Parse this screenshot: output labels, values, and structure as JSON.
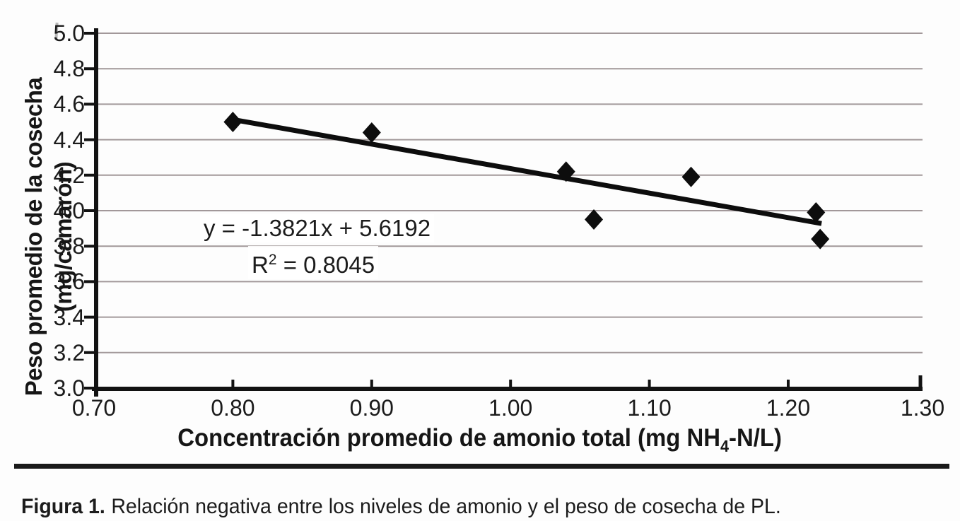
{
  "figure": {
    "caption_label": "Figura 1.",
    "caption_text": "Relación negativa entre los niveles de amonio y el peso de cosecha de PL."
  },
  "chart_data": {
    "type": "scatter",
    "title": "",
    "points": [
      [
        0.8,
        4.5
      ],
      [
        0.9,
        4.44
      ],
      [
        1.04,
        4.22
      ],
      [
        1.06,
        3.95
      ],
      [
        1.13,
        4.19
      ],
      [
        1.22,
        3.99
      ],
      [
        1.223,
        3.84
      ]
    ],
    "trendline": {
      "slope": -1.3821,
      "intercept": 5.6192,
      "r2": 0.8045,
      "label": "y = -1.3821x + 5.6192",
      "r2_prefix": "R",
      "r2_sup": "2",
      "r2_rest": " = 0.8045",
      "x_start": 0.798,
      "x_end": 1.224
    },
    "x_axis": {
      "label": "Concentración promedio de amonio total (mg NH4-N/L)",
      "label_prefix": "Concentración promedio de amonio total (mg NH",
      "label_sub": "4",
      "label_suffix": "-N/L)",
      "tick_labels": [
        "0.70",
        "0.80",
        "0.90",
        "1.00",
        "1.10",
        "1.20",
        "1.30"
      ],
      "range": [
        0.7,
        1.3
      ]
    },
    "y_axis": {
      "label_line1": "Peso promedio de la cosecha",
      "label_line2": "(mg/camarón)",
      "tick_labels": [
        "3.0",
        "3.2",
        "3.4",
        "3.6",
        "3.8",
        "4.0",
        "4.2",
        "4.4",
        "4.6",
        "4.8",
        "5.0"
      ],
      "range": [
        3.0,
        5.0
      ]
    },
    "grid": true,
    "legend": false,
    "marker": "diamond",
    "colors": {
      "marker": "#0d0d0d",
      "trendline": "#0d0d0d",
      "axis": "#121212",
      "gridline": "#a2989a",
      "text": "#1b1b1b"
    }
  }
}
